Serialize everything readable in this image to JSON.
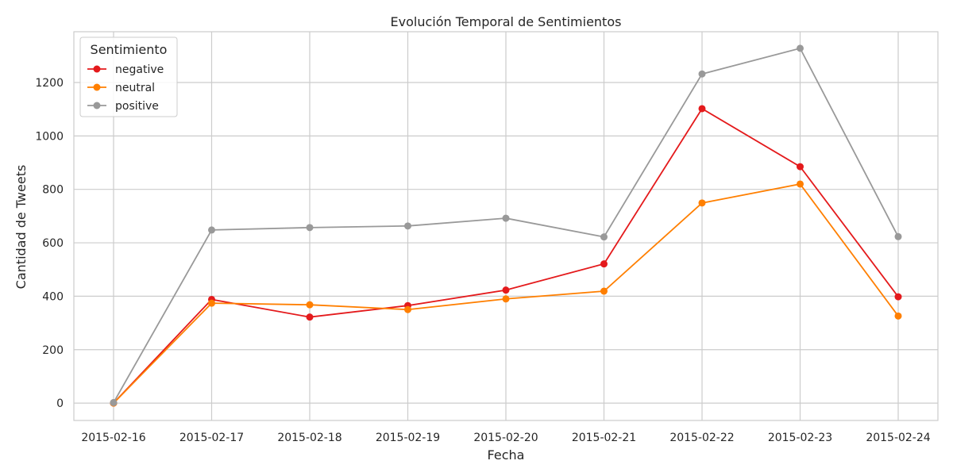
{
  "chart_data": {
    "type": "line",
    "title": "Evolución Temporal de Sentimientos",
    "xlabel": "Fecha",
    "ylabel": "Cantidad de Tweets",
    "x": [
      "2015-02-16",
      "2015-02-17",
      "2015-02-18",
      "2015-02-19",
      "2015-02-20",
      "2015-02-21",
      "2015-02-22",
      "2015-02-23",
      "2015-02-24"
    ],
    "yticks": [
      0,
      200,
      400,
      600,
      800,
      1000,
      1200
    ],
    "ylim": [
      -65,
      1390
    ],
    "grid": true,
    "legend": {
      "title": "Sentimiento",
      "placement": "top-left"
    },
    "series": [
      {
        "name": "negative",
        "color": "#e41a1c",
        "values": [
          0,
          388,
          322,
          365,
          423,
          521,
          1102,
          885,
          398
        ]
      },
      {
        "name": "neutral",
        "color": "#ff7f00",
        "values": [
          0,
          374,
          368,
          350,
          390,
          419,
          749,
          820,
          326
        ]
      },
      {
        "name": "positive",
        "color": "#999999",
        "values": [
          2,
          648,
          657,
          663,
          692,
          622,
          1232,
          1328,
          623
        ]
      }
    ]
  }
}
